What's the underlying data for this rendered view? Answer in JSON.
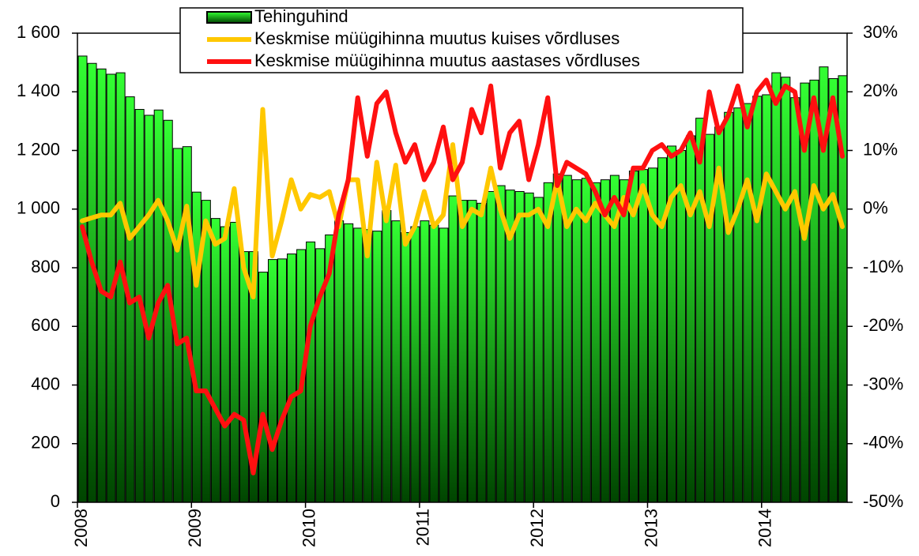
{
  "chart_data": {
    "type": "bar",
    "categories": [
      "2008",
      null,
      null,
      null,
      null,
      null,
      null,
      null,
      null,
      null,
      null,
      null,
      "2009",
      null,
      null,
      null,
      null,
      null,
      null,
      null,
      null,
      null,
      null,
      null,
      "2010",
      null,
      null,
      null,
      null,
      null,
      null,
      null,
      null,
      null,
      null,
      null,
      "2011",
      null,
      null,
      null,
      null,
      null,
      null,
      null,
      null,
      null,
      null,
      null,
      "2012",
      null,
      null,
      null,
      null,
      null,
      null,
      null,
      null,
      null,
      null,
      null,
      "2013",
      null,
      null,
      null,
      null,
      null,
      null,
      null,
      null,
      null,
      null,
      null,
      "2014",
      null,
      null,
      null,
      null,
      null,
      null,
      null,
      null
    ],
    "series": [
      {
        "name": "Tehinguhind",
        "type": "bar",
        "color": "#22dd22",
        "values": [
          1522,
          1497,
          1478,
          1460,
          1465,
          1383,
          1340,
          1320,
          1338,
          1303,
          1207,
          1213,
          1058,
          1030,
          968,
          940,
          955,
          855,
          855,
          785,
          828,
          830,
          847,
          862,
          888,
          865,
          912,
          960,
          950,
          935,
          930,
          925,
          995,
          960,
          920,
          940,
          960,
          945,
          935,
          1045,
          1030,
          1030,
          1020,
          1060,
          1080,
          1065,
          1060,
          1055,
          1040,
          1090,
          1120,
          1115,
          1100,
          1105,
          1090,
          1100,
          1115,
          1100,
          1130,
          1135,
          1140,
          1175,
          1215,
          1200,
          1250,
          1310,
          1255,
          1280,
          1330,
          1345,
          1360,
          1385,
          1390,
          1465,
          1450,
          1380,
          1430,
          1440,
          1485,
          1445,
          1455
        ]
      },
      {
        "name": "Keskmise müügihinna muutus kuises võrdluses",
        "type": "line",
        "axis": "y2",
        "color": "#ffc800",
        "values": [
          -2,
          -1.5,
          -1,
          -1,
          1,
          -5,
          -3,
          -1,
          1.5,
          -2,
          -7,
          0.5,
          -13,
          -2,
          -6,
          -5,
          3.5,
          -10,
          -15,
          17,
          -8,
          -2,
          5,
          0,
          2.5,
          2,
          3,
          -3,
          5,
          5,
          -8,
          8,
          -2,
          7.5,
          -6,
          -3,
          3,
          -3,
          -1,
          11,
          -3,
          0,
          -1,
          7,
          0,
          -5,
          -1,
          -1,
          0,
          -3,
          5,
          -3,
          0,
          -2,
          1,
          -1,
          -3,
          2,
          -1,
          4,
          -1,
          -3,
          2,
          4,
          -1,
          3,
          -3,
          7,
          -4,
          0,
          5,
          -2,
          6,
          3,
          0,
          3,
          -5,
          4,
          0,
          2.5,
          -3
        ]
      },
      {
        "name": "Keskmise müügihinna muutus aastases võrdluses",
        "type": "line",
        "axis": "y2",
        "color": "#ff1010",
        "values": [
          -3,
          -9,
          -14,
          -15,
          -9,
          -16,
          -15,
          -22,
          -16,
          -13,
          -23,
          -22,
          -31,
          -31,
          -34,
          -37,
          -35,
          -36,
          -45,
          -35,
          -41,
          -36,
          -32,
          -31,
          -20,
          -15,
          -11,
          -1,
          5,
          19,
          9,
          18,
          20,
          13,
          8,
          11,
          5,
          8,
          14,
          5,
          8,
          17,
          13,
          21,
          7,
          13,
          15,
          5,
          11,
          19,
          4,
          8,
          7,
          6,
          3,
          -1,
          2,
          -1,
          7,
          7,
          10,
          11,
          9,
          10,
          13,
          8,
          20,
          13,
          16,
          21,
          14,
          20,
          22,
          18,
          21,
          20,
          10,
          19,
          10,
          19,
          9
        ]
      }
    ],
    "ylim": [
      0,
      1600
    ],
    "yticks": [
      0,
      200,
      400,
      600,
      800,
      {
        "value": 1000,
        "label": "1 000"
      },
      {
        "value": 1200,
        "label": "1 200"
      },
      {
        "value": 1400,
        "label": "1 400"
      },
      {
        "value": 1600,
        "label": "1 600"
      }
    ],
    "y2lim": [
      -50,
      30
    ],
    "y2ticks": [
      {
        "value": -50,
        "label": "-50%"
      },
      {
        "value": -40,
        "label": "-40%"
      },
      {
        "value": -30,
        "label": "-30%"
      },
      {
        "value": -20,
        "label": "-20%"
      },
      {
        "value": -10,
        "label": "-10%"
      },
      {
        "value": 0,
        "label": "0%"
      },
      {
        "value": 10,
        "label": "10%"
      },
      {
        "value": 20,
        "label": "20%"
      },
      {
        "value": 30,
        "label": "30%"
      }
    ],
    "legend": "top"
  }
}
